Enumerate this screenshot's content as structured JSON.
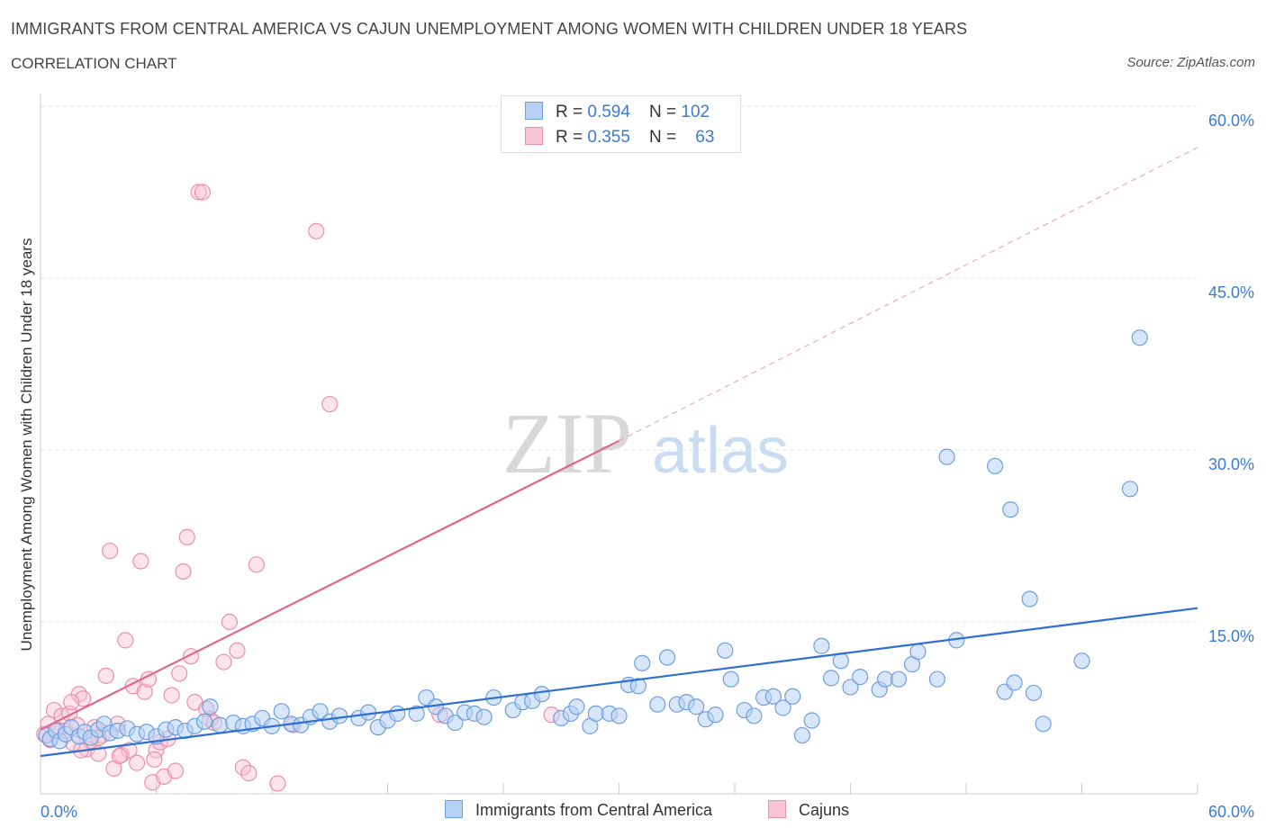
{
  "header": {
    "title": "IMMIGRANTS FROM CENTRAL AMERICA VS CAJUN UNEMPLOYMENT AMONG WOMEN WITH CHILDREN UNDER 18 YEARS",
    "subtitle": "CORRELATION CHART",
    "source": "Source: ZipAtlas.com"
  },
  "legend_box": {
    "rows": [
      {
        "r_label": "R = ",
        "r_value": "0.594",
        "n_label": "N = ",
        "n_value": "102"
      },
      {
        "r_label": "R = ",
        "r_value": "0.355",
        "n_label": "N = ",
        "n_value": "63"
      }
    ]
  },
  "bottom_legend": {
    "items": [
      "Immigrants from Central America",
      "Cajuns"
    ]
  },
  "watermark": {
    "zip": "ZIP",
    "atlas": "atlas"
  },
  "colors": {
    "blue": "#3a7bd5",
    "pink": "#e86b95",
    "blue_fill": "#b8d2f5",
    "pink_fill": "#f9c4d3"
  },
  "chart_data": {
    "type": "scatter",
    "title": "IMMIGRANTS FROM CENTRAL AMERICA VS CAJUN UNEMPLOYMENT AMONG WOMEN WITH CHILDREN UNDER 18 YEARS",
    "ylabel": "Unemployment Among Women with Children Under 18 years",
    "xlim": [
      0,
      60
    ],
    "ylim": [
      0,
      60
    ],
    "x_tick_labels": [
      "0.0%",
      "60.0%"
    ],
    "y_tick_labels": [
      "15.0%",
      "30.0%",
      "45.0%",
      "60.0%"
    ],
    "grid": true,
    "legend_position": "top-center",
    "series": [
      {
        "name": "Immigrants from Central America",
        "color": "#3a7bd5",
        "R": 0.594,
        "N": 102,
        "trend": {
          "x0": 0,
          "y0": 3.3,
          "x1": 60,
          "y1": 16.2
        },
        "points": [
          [
            0.3,
            5.1
          ],
          [
            0.5,
            4.8
          ],
          [
            0.8,
            5.5
          ],
          [
            1.0,
            4.6
          ],
          [
            1.3,
            5.2
          ],
          [
            1.6,
            5.8
          ],
          [
            2.0,
            5.0
          ],
          [
            2.3,
            5.4
          ],
          [
            2.6,
            4.9
          ],
          [
            3.0,
            5.6
          ],
          [
            3.3,
            6.1
          ],
          [
            3.6,
            5.3
          ],
          [
            4.0,
            5.5
          ],
          [
            4.5,
            5.7
          ],
          [
            5.0,
            5.2
          ],
          [
            5.5,
            5.4
          ],
          [
            6.0,
            5.0
          ],
          [
            6.5,
            5.6
          ],
          [
            7.0,
            5.8
          ],
          [
            7.5,
            5.5
          ],
          [
            8.0,
            5.9
          ],
          [
            8.5,
            6.3
          ],
          [
            8.8,
            7.6
          ],
          [
            9.3,
            6.0
          ],
          [
            10.0,
            6.2
          ],
          [
            10.5,
            5.9
          ],
          [
            11.0,
            6.1
          ],
          [
            11.5,
            6.6
          ],
          [
            12.0,
            5.9
          ],
          [
            12.5,
            7.2
          ],
          [
            13.0,
            6.1
          ],
          [
            13.5,
            6.0
          ],
          [
            14.0,
            6.7
          ],
          [
            14.5,
            7.2
          ],
          [
            15.0,
            6.3
          ],
          [
            15.5,
            6.8
          ],
          [
            16.5,
            6.6
          ],
          [
            17.0,
            7.1
          ],
          [
            17.5,
            5.8
          ],
          [
            18.0,
            6.4
          ],
          [
            18.5,
            7.0
          ],
          [
            19.5,
            7.0
          ],
          [
            20.0,
            8.4
          ],
          [
            20.5,
            7.6
          ],
          [
            21.0,
            6.8
          ],
          [
            21.5,
            6.2
          ],
          [
            22.0,
            7.1
          ],
          [
            22.5,
            7.0
          ],
          [
            23.0,
            6.7
          ],
          [
            23.5,
            8.4
          ],
          [
            24.5,
            7.3
          ],
          [
            25.0,
            8.0
          ],
          [
            25.5,
            8.1
          ],
          [
            26.0,
            8.7
          ],
          [
            27.0,
            6.6
          ],
          [
            27.5,
            7.0
          ],
          [
            27.8,
            7.6
          ],
          [
            28.5,
            5.9
          ],
          [
            28.8,
            7.0
          ],
          [
            29.5,
            7.0
          ],
          [
            30.0,
            6.8
          ],
          [
            30.5,
            9.5
          ],
          [
            31.0,
            9.4
          ],
          [
            31.2,
            11.4
          ],
          [
            32.0,
            7.8
          ],
          [
            32.5,
            11.9
          ],
          [
            33.0,
            7.8
          ],
          [
            33.5,
            8.0
          ],
          [
            34.0,
            7.6
          ],
          [
            34.5,
            6.5
          ],
          [
            35.0,
            6.9
          ],
          [
            35.5,
            12.5
          ],
          [
            35.8,
            10.0
          ],
          [
            36.5,
            7.3
          ],
          [
            37.0,
            6.8
          ],
          [
            37.5,
            8.4
          ],
          [
            38.0,
            8.5
          ],
          [
            38.5,
            7.5
          ],
          [
            39.0,
            8.5
          ],
          [
            39.5,
            5.1
          ],
          [
            40.0,
            6.4
          ],
          [
            40.5,
            12.9
          ],
          [
            41.0,
            10.1
          ],
          [
            41.5,
            11.6
          ],
          [
            42.0,
            9.3
          ],
          [
            42.5,
            10.2
          ],
          [
            43.5,
            9.1
          ],
          [
            43.8,
            10.0
          ],
          [
            44.5,
            10.0
          ],
          [
            45.2,
            11.3
          ],
          [
            45.5,
            12.4
          ],
          [
            46.5,
            10.0
          ],
          [
            47.5,
            13.4
          ],
          [
            50.0,
            8.9
          ],
          [
            50.5,
            9.7
          ],
          [
            51.5,
            8.8
          ],
          [
            52.0,
            6.1
          ],
          [
            54.0,
            11.6
          ],
          [
            56.5,
            26.6
          ],
          [
            57.0,
            39.8
          ],
          [
            47.0,
            29.4
          ],
          [
            49.5,
            28.6
          ],
          [
            50.3,
            24.8
          ],
          [
            51.3,
            17.0
          ]
        ]
      },
      {
        "name": "Cajuns",
        "color": "#e86b95",
        "R": 0.355,
        "N": 63,
        "trend": {
          "x0": 0,
          "y0": 5.6,
          "x1": 30,
          "y1": 30.8,
          "dashed_to": {
            "x": 60,
            "y": 56.4
          }
        },
        "points": [
          [
            0.2,
            5.2
          ],
          [
            0.4,
            6.1
          ],
          [
            0.5,
            4.7
          ],
          [
            0.7,
            7.3
          ],
          [
            0.9,
            5.6
          ],
          [
            1.1,
            6.8
          ],
          [
            1.3,
            5.5
          ],
          [
            1.5,
            7.0
          ],
          [
            1.7,
            4.4
          ],
          [
            1.9,
            6.0
          ],
          [
            2.0,
            8.7
          ],
          [
            2.2,
            8.3
          ],
          [
            2.4,
            3.9
          ],
          [
            2.6,
            4.6
          ],
          [
            2.8,
            5.8
          ],
          [
            3.0,
            3.5
          ],
          [
            3.2,
            5.1
          ],
          [
            3.4,
            10.3
          ],
          [
            3.6,
            21.2
          ],
          [
            3.8,
            2.2
          ],
          [
            4.0,
            6.1
          ],
          [
            4.2,
            3.4
          ],
          [
            4.4,
            13.4
          ],
          [
            4.6,
            3.8
          ],
          [
            4.8,
            9.4
          ],
          [
            5.0,
            2.7
          ],
          [
            5.2,
            20.3
          ],
          [
            5.4,
            8.9
          ],
          [
            5.6,
            10.0
          ],
          [
            5.8,
            1.0
          ],
          [
            6.0,
            3.8
          ],
          [
            6.2,
            4.5
          ],
          [
            6.4,
            1.5
          ],
          [
            6.6,
            4.8
          ],
          [
            6.8,
            8.6
          ],
          [
            7.0,
            2.0
          ],
          [
            7.2,
            10.5
          ],
          [
            7.4,
            19.4
          ],
          [
            7.6,
            22.4
          ],
          [
            7.8,
            12.0
          ],
          [
            8.0,
            8.0
          ],
          [
            8.2,
            52.5
          ],
          [
            8.4,
            52.5
          ],
          [
            8.6,
            7.4
          ],
          [
            8.8,
            6.5
          ],
          [
            9.5,
            11.5
          ],
          [
            9.8,
            15.0
          ],
          [
            10.2,
            12.5
          ],
          [
            10.5,
            2.3
          ],
          [
            10.8,
            1.8
          ],
          [
            11.2,
            20.0
          ],
          [
            12.3,
            0.9
          ],
          [
            13.1,
            6.0
          ],
          [
            14.3,
            49.1
          ],
          [
            15.0,
            34.0
          ],
          [
            20.7,
            6.9
          ],
          [
            26.5,
            6.9
          ],
          [
            3.0,
            4.9
          ],
          [
            2.1,
            3.8
          ],
          [
            1.6,
            8.0
          ],
          [
            4.1,
            3.3
          ],
          [
            5.9,
            3.0
          ],
          [
            9.0,
            6.2
          ]
        ]
      }
    ]
  }
}
